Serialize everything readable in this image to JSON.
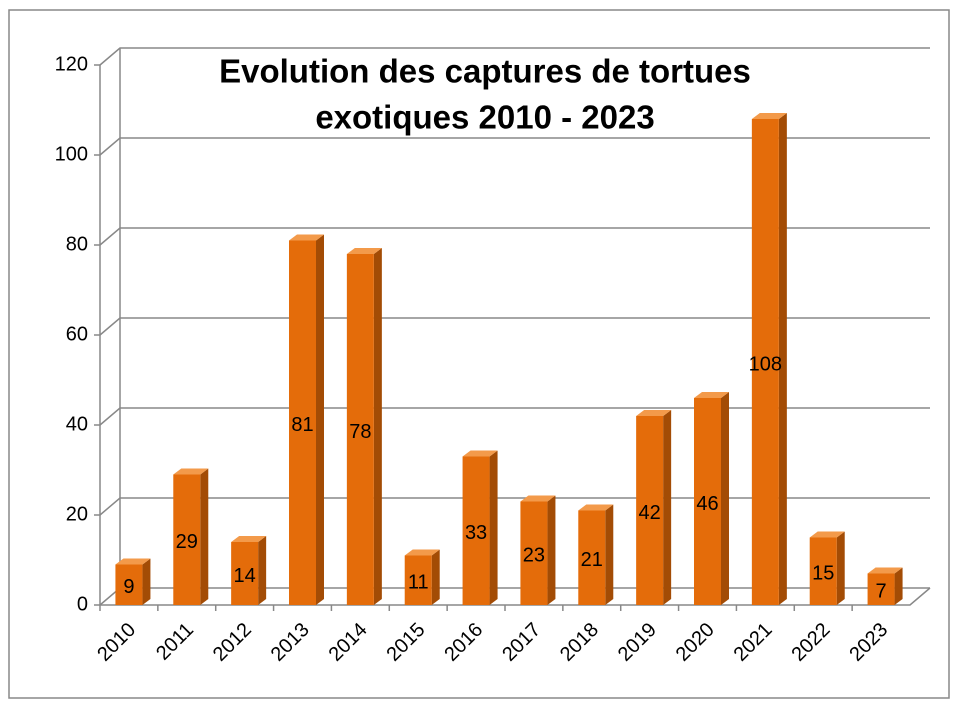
{
  "chart_data": {
    "type": "bar",
    "title": [
      "Evolution des captures de tortues",
      "exotiques 2010 - 2023"
    ],
    "categories": [
      "2010",
      "2011",
      "2012",
      "2013",
      "2014",
      "2015",
      "2016",
      "2017",
      "2018",
      "2019",
      "2020",
      "2021",
      "2022",
      "2023"
    ],
    "values": [
      9,
      29,
      14,
      81,
      78,
      11,
      33,
      23,
      21,
      42,
      46,
      108,
      15,
      7
    ],
    "color": "#e46c0a",
    "ylim": [
      0,
      120
    ],
    "yticks": [
      0,
      20,
      40,
      60,
      80,
      100,
      120
    ],
    "grid": true
  }
}
